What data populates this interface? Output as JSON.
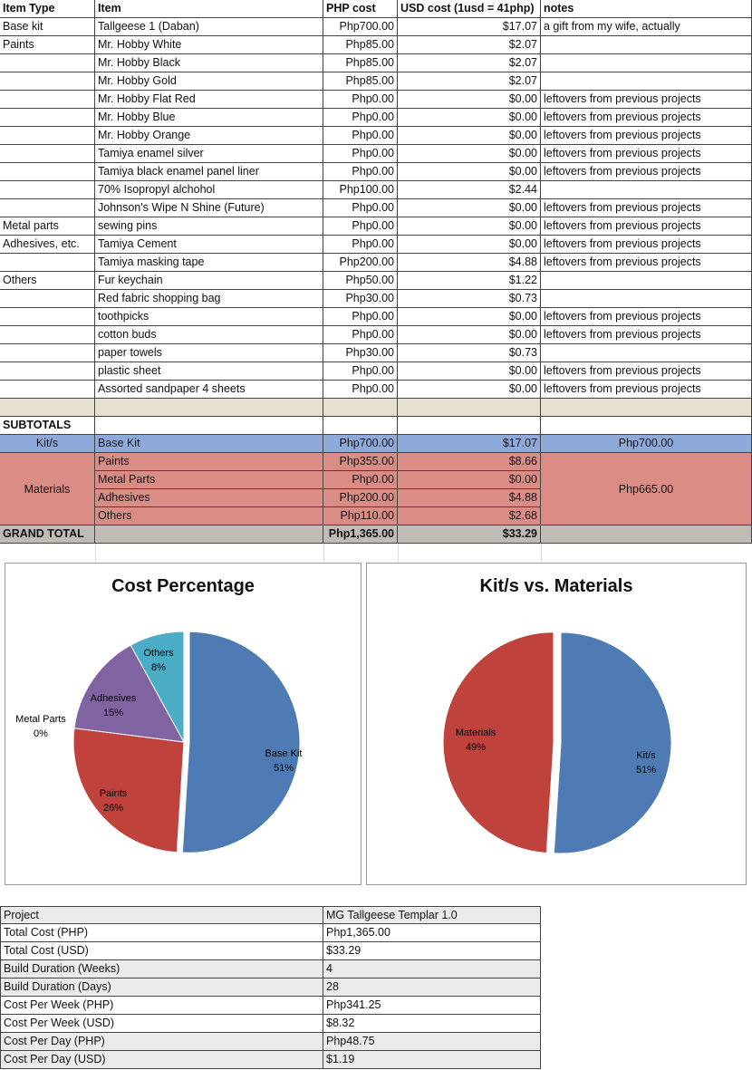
{
  "headers": [
    "Item Type",
    "Item",
    "PHP cost",
    "USD cost (1usd = 41php)",
    "notes"
  ],
  "items": [
    [
      "Base kit",
      "Tallgeese 1 (Daban)",
      "Php700.00",
      "$17.07",
      "a gift from my wife, actually"
    ],
    [
      "Paints",
      "Mr. Hobby White",
      "Php85.00",
      "$2.07",
      ""
    ],
    [
      "",
      "Mr. Hobby Black",
      "Php85.00",
      "$2.07",
      ""
    ],
    [
      "",
      "Mr. Hobby Gold",
      "Php85.00",
      "$2.07",
      ""
    ],
    [
      "",
      "Mr. Hobby Flat Red",
      "Php0.00",
      "$0.00",
      "leftovers from previous projects"
    ],
    [
      "",
      "Mr. Hobby Blue",
      "Php0.00",
      "$0.00",
      "leftovers from previous projects"
    ],
    [
      "",
      "Mr. Hobby Orange",
      "Php0.00",
      "$0.00",
      "leftovers from previous projects"
    ],
    [
      "",
      "Tamiya enamel silver",
      "Php0.00",
      "$0.00",
      "leftovers from previous projects"
    ],
    [
      "",
      "Tamiya black enamel panel liner",
      "Php0.00",
      "$0.00",
      "leftovers from previous projects"
    ],
    [
      "",
      "70% Isopropyl alchohol",
      "Php100.00",
      "$2.44",
      ""
    ],
    [
      "",
      "Johnson's Wipe N Shine (Future)",
      "Php0.00",
      "$0.00",
      "leftovers from previous projects"
    ],
    [
      "Metal parts",
      "sewing pins",
      "Php0.00",
      "$0.00",
      "leftovers from previous projects"
    ],
    [
      "Adhesives, etc.",
      "Tamiya Cement",
      "Php0.00",
      "$0.00",
      "leftovers from previous projects"
    ],
    [
      "",
      "Tamiya masking tape",
      "Php200.00",
      "$4.88",
      "leftovers from previous projects"
    ],
    [
      "Others",
      "Fur keychain",
      "Php50.00",
      "$1.22",
      ""
    ],
    [
      "",
      "Red fabric shopping bag",
      "Php30.00",
      "$0.73",
      ""
    ],
    [
      "",
      "toothpicks",
      "Php0.00",
      "$0.00",
      "leftovers from previous projects"
    ],
    [
      "",
      "cotton buds",
      "Php0.00",
      "$0.00",
      "leftovers from previous projects"
    ],
    [
      "",
      "paper towels",
      "Php30.00",
      "$0.73",
      ""
    ],
    [
      "",
      "plastic sheet",
      "Php0.00",
      "$0.00",
      "leftovers from previous projects"
    ],
    [
      "",
      "Assorted sandpaper 4 sheets",
      "Php0.00",
      "$0.00",
      "leftovers from previous projects"
    ]
  ],
  "subtotals": {
    "label": "SUBTOTALS",
    "kit": {
      "group": "Kit/s",
      "item": "Base Kit",
      "php": "Php700.00",
      "usd": "$17.07",
      "total": "Php700.00"
    },
    "materials": {
      "group": "Materials",
      "total": "Php665.00",
      "rows": [
        [
          "Paints",
          "Php355.00",
          "$8.66"
        ],
        [
          "Metal Parts",
          "Php0.00",
          "$0.00"
        ],
        [
          "Adhesives",
          "Php200.00",
          "$4.88"
        ],
        [
          "Others",
          "Php110.00",
          "$2.68"
        ]
      ]
    },
    "grand": {
      "label": "GRAND TOTAL",
      "php": "Php1,365.00",
      "usd": "$33.29"
    }
  },
  "colors": {
    "kit": "#8eaadb",
    "materials": "#da8c85",
    "grand": "#bfbbb5",
    "beige": "#e6e0d0"
  },
  "chart_data": [
    {
      "type": "pie",
      "title": "Cost Percentage",
      "labels": [
        "Base Kit",
        "Paints",
        "Metal Parts",
        "Adhesives",
        "Others"
      ],
      "values": [
        51,
        26,
        0,
        15,
        8
      ],
      "label_text": [
        "51%",
        "26%",
        "0%",
        "15%",
        "8%"
      ],
      "colors": [
        "#4f7bb5",
        "#c0423c",
        "#c0423c",
        "#8064a2",
        "#4bacc6"
      ]
    },
    {
      "type": "pie",
      "title": "Kit/s vs. Materials",
      "labels": [
        "Kit/s",
        "Materials"
      ],
      "values": [
        51,
        49
      ],
      "label_text": [
        "51%",
        "49%"
      ],
      "colors": [
        "#4f7bb5",
        "#c0423c"
      ]
    }
  ],
  "summary": [
    [
      "Project",
      "MG Tallgeese Templar 1.0"
    ],
    [
      "Total Cost (PHP)",
      "Php1,365.00"
    ],
    [
      "Total Cost (USD)",
      "$33.29"
    ],
    [
      "Build Duration (Weeks)",
      "4"
    ],
    [
      "Build Duration (Days)",
      "28"
    ],
    [
      "Cost Per Week (PHP)",
      "Php341.25"
    ],
    [
      "Cost Per Week (USD)",
      "$8.32"
    ],
    [
      "Cost Per Day (PHP)",
      "Php48.75"
    ],
    [
      "Cost Per Day (USD)",
      "$1.19"
    ]
  ]
}
